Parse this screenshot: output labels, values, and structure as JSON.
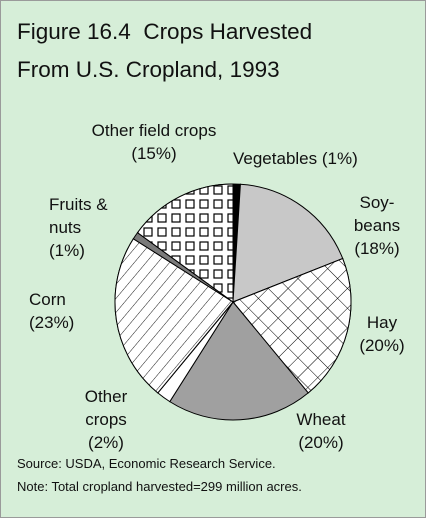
{
  "chart_data": {
    "type": "pie",
    "title": "Figure 16.4  Crops Harvested From U.S. Cropland, 1993",
    "categories": [
      "Vegetables",
      "Soy-beans",
      "Hay",
      "Wheat",
      "Other crops",
      "Corn",
      "Fruits & nuts",
      "Other field crops"
    ],
    "values": [
      1,
      18,
      20,
      20,
      2,
      23,
      1,
      15
    ],
    "value_labels": [
      "(1%)",
      "(18%)",
      "(20%)",
      "(20%)",
      "(2%)",
      "(23%)",
      "(1%)",
      "(15%)"
    ],
    "colors": [
      "#000000",
      "#c8c8c8",
      "#ffffff",
      "#a0a0a0",
      "#ffffff",
      "#ffffff",
      "#7a7a7a",
      "#ffffff"
    ],
    "patterns": [
      null,
      null,
      "crosshatch",
      null,
      null,
      "diagonal",
      null,
      "squares"
    ],
    "source": "Source: USDA, Economic Research Service.",
    "note": "Note: Total cropland harvested=299 million acres."
  }
}
